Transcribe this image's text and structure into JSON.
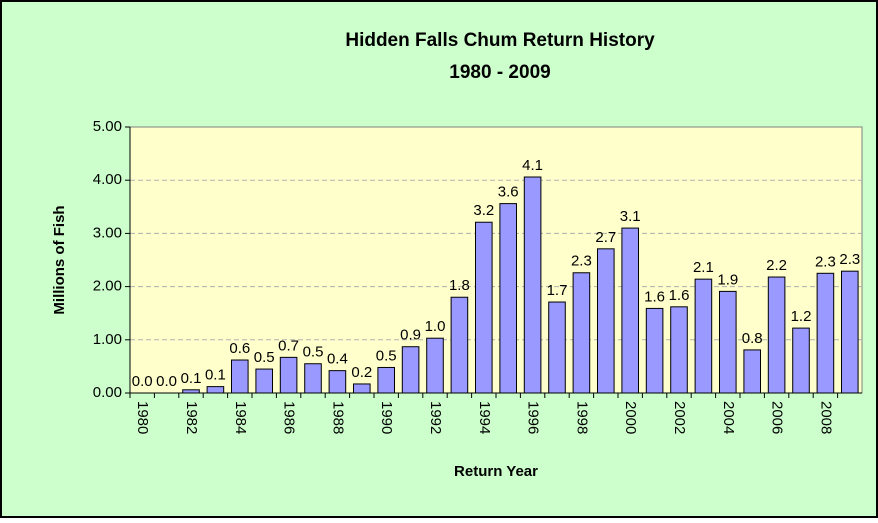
{
  "chart_data": {
    "type": "bar",
    "title": "Hidden Falls Chum Return History",
    "subtitle": "1980 - 2009",
    "y_label": "Millions of Fish",
    "x_label": "Return Year",
    "categories": [
      "1980",
      null,
      "1982",
      null,
      "1984",
      null,
      "1986",
      null,
      "1988",
      null,
      "1990",
      null,
      "1992",
      null,
      "1994",
      null,
      "1996",
      null,
      "1998",
      null,
      "2000",
      null,
      "2002",
      null,
      "2004",
      null,
      "2006",
      null,
      "2008",
      null
    ],
    "values": [
      0.0,
      0.0,
      0.06,
      0.12,
      0.62,
      0.45,
      0.67,
      0.55,
      0.42,
      0.17,
      0.48,
      0.87,
      1.03,
      1.8,
      3.21,
      3.56,
      4.06,
      1.71,
      2.26,
      2.71,
      3.1,
      1.59,
      1.62,
      2.14,
      1.91,
      0.81,
      2.18,
      1.22,
      2.25,
      2.29
    ],
    "value_labels": [
      "0.0",
      "0.0",
      "0.1",
      "0.1",
      "0.6",
      "0.5",
      "0.7",
      "0.5",
      "0.4",
      "0.2",
      "0.5",
      "0.9",
      "1.0",
      "1.8",
      "3.2",
      "3.6",
      "4.1",
      "1.7",
      "2.3",
      "2.7",
      "3.1",
      "1.6",
      "1.6",
      "2.1",
      "1.9",
      "0.8",
      "2.2",
      "1.2",
      "2.3",
      "2.3"
    ],
    "color": "#9999ff",
    "ylim": [
      0,
      5
    ],
    "yticks": [
      {
        "value": 0,
        "label": "0.00"
      },
      {
        "value": 1,
        "label": "1.00"
      },
      {
        "value": 2,
        "label": "2.00"
      },
      {
        "value": 3,
        "label": "3.00"
      },
      {
        "value": 4,
        "label": "4.00"
      },
      {
        "value": 5,
        "label": "5.00"
      }
    ],
    "grid": true
  }
}
